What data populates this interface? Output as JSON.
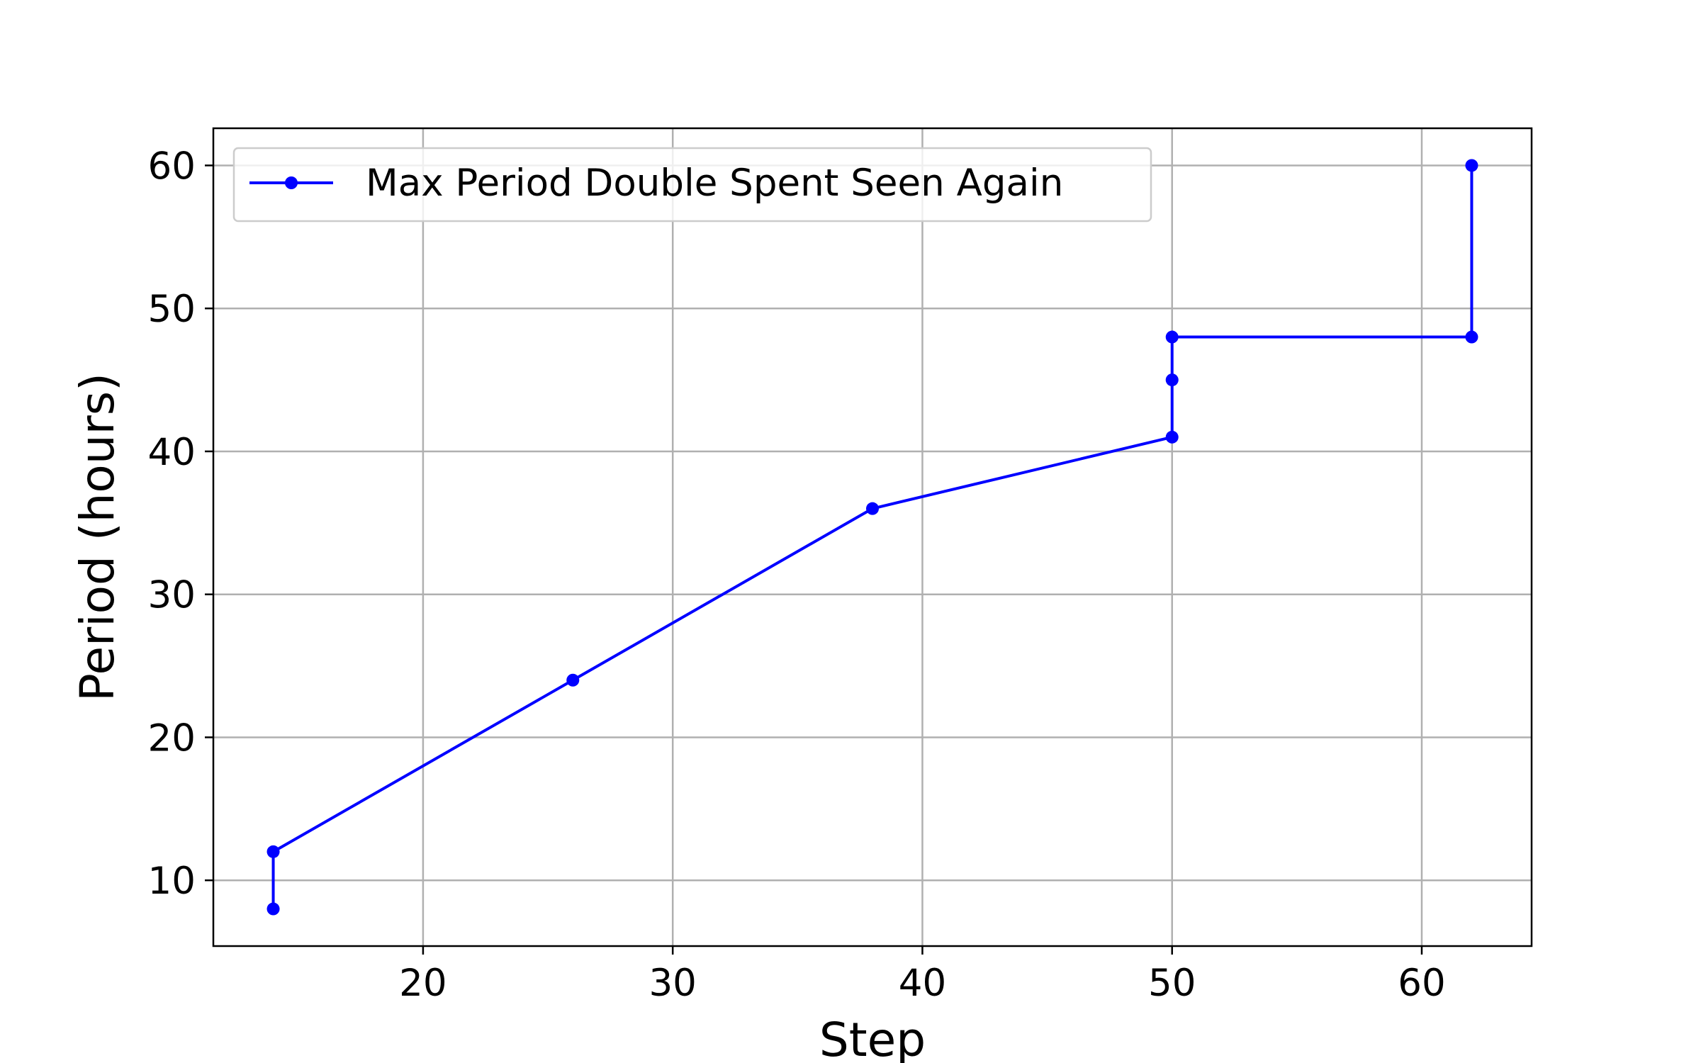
{
  "chart_data": {
    "type": "line",
    "title": "",
    "xlabel": "Step",
    "ylabel": "Period (hours)",
    "xlim": [
      11.6,
      64.4
    ],
    "ylim": [
      5.4,
      62.6
    ],
    "xticks": [
      20,
      30,
      40,
      50,
      60
    ],
    "yticks": [
      10,
      20,
      30,
      40,
      50,
      60
    ],
    "grid": true,
    "legend_position": "top-left",
    "series": [
      {
        "name": "Max Period Double Spent Seen Again",
        "color": "#0000ff",
        "marker": "circle",
        "points": [
          {
            "x": 14,
            "y": 8
          },
          {
            "x": 14,
            "y": 12
          },
          {
            "x": 26,
            "y": 24
          },
          {
            "x": 38,
            "y": 36
          },
          {
            "x": 50,
            "y": 41
          },
          {
            "x": 50,
            "y": 45
          },
          {
            "x": 50,
            "y": 48
          },
          {
            "x": 62,
            "y": 48
          },
          {
            "x": 62,
            "y": 60
          }
        ]
      }
    ]
  }
}
